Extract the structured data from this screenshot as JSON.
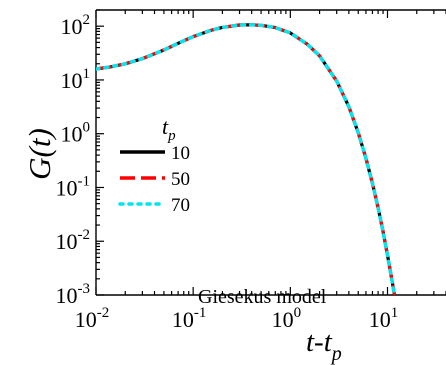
{
  "chart_data": {
    "type": "line",
    "title": "",
    "ylabel_main": "G",
    "ylabel_arg": "(t)",
    "xlabel_main": "t-t",
    "xlabel_sub": "p",
    "x_scale": "log",
    "y_scale": "log",
    "xlim": [
      0.01,
      40
    ],
    "ylim": [
      0.001,
      200
    ],
    "x_ticks": [
      {
        "value": 0.01,
        "base": "10",
        "exp": "-2"
      },
      {
        "value": 0.1,
        "base": "10",
        "exp": "-1"
      },
      {
        "value": 1,
        "base": "10",
        "exp": "0"
      },
      {
        "value": 10,
        "base": "10",
        "exp": "1"
      }
    ],
    "y_ticks": [
      {
        "value": 0.001,
        "base": "10",
        "exp": "-3"
      },
      {
        "value": 0.01,
        "base": "10",
        "exp": "-2"
      },
      {
        "value": 0.1,
        "base": "10",
        "exp": "-1"
      },
      {
        "value": 1,
        "base": "10",
        "exp": "0"
      },
      {
        "value": 10,
        "base": "10",
        "exp": "1"
      },
      {
        "value": 100,
        "base": "10",
        "exp": "2"
      }
    ],
    "grid": false,
    "legend": {
      "placement": "center-left",
      "title_main": "t",
      "title_sub": "p",
      "entries": [
        {
          "label": "10",
          "color": "#000000",
          "style": "solid"
        },
        {
          "label": "50",
          "color": "#ff0000",
          "style": "dashed"
        },
        {
          "label": "70",
          "color": "#00e5ee",
          "style": "dotted"
        }
      ]
    },
    "annotation": "Giesekus model",
    "series": [
      {
        "name": "10",
        "color": "#000000",
        "style": "solid",
        "x": [
          0.01,
          0.014,
          0.02,
          0.03,
          0.05,
          0.07,
          0.1,
          0.15,
          0.2,
          0.3,
          0.4,
          0.5,
          0.7,
          1,
          1.5,
          2,
          3,
          4,
          5,
          6,
          7,
          8,
          9,
          10,
          11,
          11.8
        ],
        "y": [
          16,
          17.5,
          20,
          25,
          36,
          48,
          64,
          83,
          95,
          105,
          106,
          104,
          94,
          75,
          46,
          28,
          9.5,
          3.2,
          1.05,
          0.35,
          0.12,
          0.042,
          0.015,
          0.0055,
          0.0021,
          0.001
        ]
      },
      {
        "name": "50",
        "color": "#ff0000",
        "style": "dashed",
        "x": [
          0.01,
          0.014,
          0.02,
          0.03,
          0.05,
          0.07,
          0.1,
          0.15,
          0.2,
          0.3,
          0.4,
          0.5,
          0.7,
          1,
          1.5,
          2,
          3,
          4,
          5,
          6,
          7,
          8,
          9,
          10,
          11,
          11.8
        ],
        "y": [
          16,
          17.5,
          20,
          25,
          36,
          48,
          64,
          83,
          95,
          105,
          106,
          104,
          94,
          75,
          46,
          28,
          9.5,
          3.2,
          1.05,
          0.35,
          0.12,
          0.042,
          0.015,
          0.0055,
          0.0021,
          0.001
        ]
      },
      {
        "name": "70",
        "color": "#00e5ee",
        "style": "dotted",
        "x": [
          0.01,
          0.014,
          0.02,
          0.03,
          0.05,
          0.07,
          0.1,
          0.15,
          0.2,
          0.3,
          0.4,
          0.5,
          0.7,
          1,
          1.5,
          2,
          3,
          4,
          5,
          6,
          7,
          8,
          9,
          10,
          11,
          11.8
        ],
        "y": [
          16,
          17.5,
          20,
          25,
          36,
          48,
          64,
          83,
          95,
          105,
          106,
          104,
          94,
          75,
          46,
          28,
          9.5,
          3.2,
          1.05,
          0.35,
          0.12,
          0.042,
          0.015,
          0.0055,
          0.0021,
          0.001
        ]
      }
    ]
  }
}
